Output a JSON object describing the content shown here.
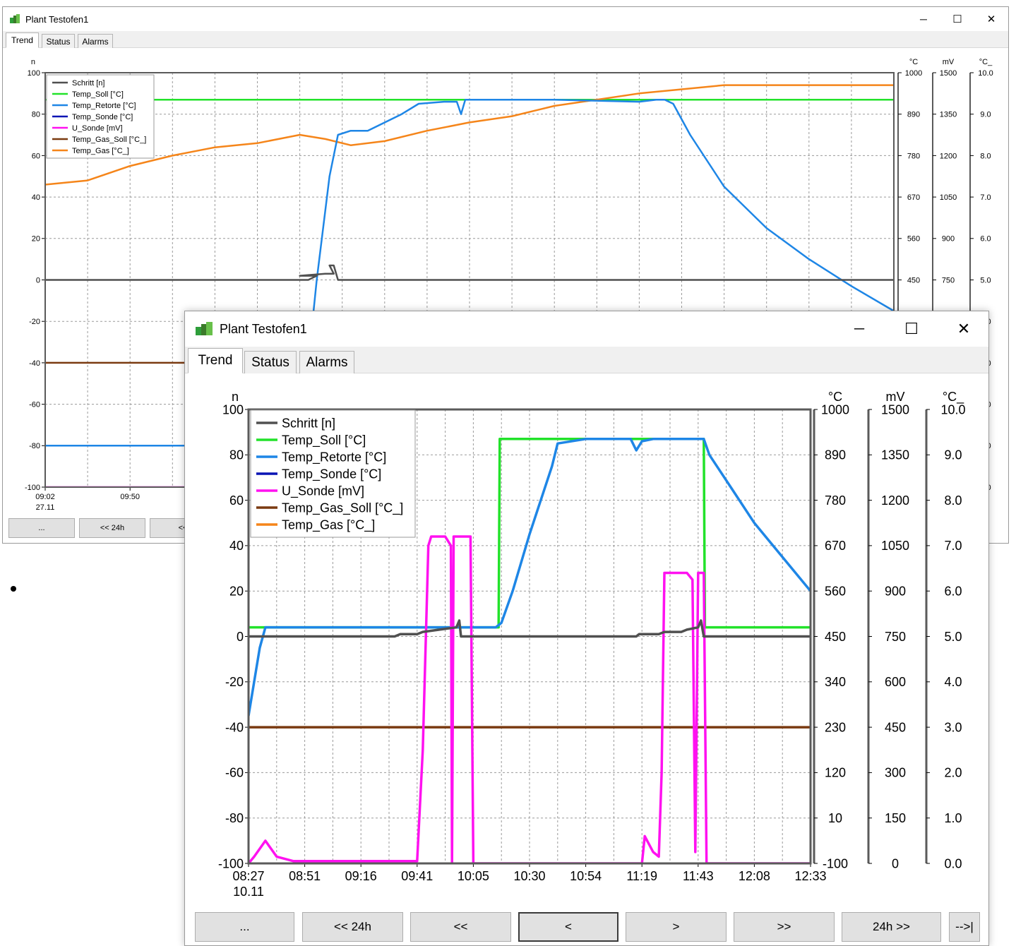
{
  "title": "Plant Testofen1",
  "window_controls": {
    "minimize": "─",
    "maximize": "☐",
    "close": "✕"
  },
  "tabs": [
    "Trend",
    "Status",
    "Alarms"
  ],
  "legend": [
    "Schritt [n]",
    "Temp_Soll [°C]",
    "Temp_Retorte [°C]",
    "Temp_Sonde [°C]",
    "U_Sonde [mV]",
    "Temp_Gas_Soll [°C_]",
    "Temp_Gas [°C_]"
  ],
  "colors": {
    "Schritt": "#505050",
    "Temp_Soll": "#22e22a",
    "Temp_Retorte": "#1e86e6",
    "Temp_Sonde": "#0a14b4",
    "U_Sonde": "#ff11f0",
    "Temp_Gas_Soll": "#7a3a10",
    "Temp_Gas": "#f5851a"
  },
  "axes": {
    "left": {
      "unit": "n",
      "ticks": [
        "100",
        "80",
        "60",
        "40",
        "20",
        "0",
        "-20",
        "-40",
        "-60",
        "-80",
        "-100"
      ]
    },
    "r1": {
      "unit": "°C",
      "ticks": [
        "1000",
        "890",
        "780",
        "670",
        "560",
        "450",
        "340",
        "230",
        "120",
        "10",
        "-100"
      ]
    },
    "r2": {
      "unit": "mV",
      "ticks": [
        "1500",
        "1350",
        "1200",
        "1050",
        "900",
        "750",
        "600",
        "450",
        "300",
        "150",
        "0"
      ]
    },
    "r3": {
      "unit": "°C_",
      "ticks": [
        "10.0",
        "9.0",
        "8.0",
        "7.0",
        "6.0",
        "5.0",
        "4.0",
        "3.0",
        "2.0",
        "1.0",
        "0.0"
      ]
    }
  },
  "back": {
    "x_ticks": [
      "09:02",
      "09:50"
    ],
    "date": "27.11",
    "buttons": [
      "...",
      "<< 24h",
      "<<"
    ]
  },
  "front": {
    "x_ticks": [
      "08:27",
      "08:51",
      "09:16",
      "09:41",
      "10:05",
      "10:30",
      "10:54",
      "11:19",
      "11:43",
      "12:08",
      "12:33"
    ],
    "date": "10.11",
    "buttons": [
      "...",
      "<< 24h",
      "<<",
      "<",
      ">",
      ">>",
      "24h >>",
      "-->|"
    ]
  },
  "chart_data": [
    {
      "type": "line",
      "title": "",
      "x_start": "09:02",
      "x_start_date": "27.11",
      "xlabel": "",
      "ylabel": "n",
      "ylim": [
        -100,
        100
      ],
      "grid": true,
      "legend_position": "top-left",
      "series": [
        {
          "name": "Schritt [n]",
          "axis": "n",
          "points": [
            [
              0,
              0
            ],
            [
              0.31,
              0
            ],
            [
              0.32,
              2
            ],
            [
              0.3,
              2
            ],
            [
              0.33,
              3
            ],
            [
              0.34,
              3
            ],
            [
              0.335,
              7
            ],
            [
              0.34,
              7
            ],
            [
              0.345,
              0
            ],
            [
              1,
              0
            ]
          ]
        },
        {
          "name": "Temp_Soll [°C]",
          "axis": "°C",
          "points": [
            [
              0,
              87
            ],
            [
              1,
              87
            ]
          ]
        },
        {
          "name": "Temp_Retorte [°C]",
          "axis": "°C",
          "points": [
            [
              0,
              -80
            ],
            [
              0.3,
              -80
            ],
            [
              0.305,
              -60
            ],
            [
              0.32,
              0
            ],
            [
              0.335,
              50
            ],
            [
              0.345,
              70
            ],
            [
              0.36,
              72
            ],
            [
              0.38,
              72
            ],
            [
              0.42,
              80
            ],
            [
              0.44,
              85
            ],
            [
              0.47,
              86
            ],
            [
              0.485,
              86
            ],
            [
              0.49,
              80
            ],
            [
              0.495,
              87
            ],
            [
              0.6,
              87
            ],
            [
              0.7,
              86
            ],
            [
              0.72,
              87
            ],
            [
              0.73,
              87
            ],
            [
              0.74,
              85
            ],
            [
              0.76,
              70
            ],
            [
              0.8,
              45
            ],
            [
              0.85,
              25
            ],
            [
              0.9,
              10
            ],
            [
              0.95,
              -3
            ],
            [
              1,
              -15
            ]
          ]
        },
        {
          "name": "Temp_Sonde [°C]",
          "axis": "°C",
          "points": []
        },
        {
          "name": "U_Sonde [mV]",
          "axis": "mV",
          "points": [
            [
              0,
              -100
            ],
            [
              1,
              -100
            ]
          ]
        },
        {
          "name": "Temp_Gas_Soll [°C_]",
          "axis": "°C_",
          "points": [
            [
              0,
              -40
            ],
            [
              1,
              -40
            ]
          ]
        },
        {
          "name": "Temp_Gas [°C_]",
          "axis": "°C_",
          "points": [
            [
              0,
              46
            ],
            [
              0.05,
              48
            ],
            [
              0.1,
              55
            ],
            [
              0.15,
              60
            ],
            [
              0.2,
              64
            ],
            [
              0.25,
              66
            ],
            [
              0.3,
              70
            ],
            [
              0.33,
              68
            ],
            [
              0.36,
              65
            ],
            [
              0.4,
              67
            ],
            [
              0.45,
              72
            ],
            [
              0.5,
              76
            ],
            [
              0.55,
              79
            ],
            [
              0.6,
              84
            ],
            [
              0.65,
              87
            ],
            [
              0.7,
              90
            ],
            [
              0.75,
              92
            ],
            [
              0.8,
              94
            ],
            [
              0.85,
              94
            ],
            [
              0.9,
              94
            ],
            [
              1,
              94
            ]
          ]
        }
      ]
    },
    {
      "type": "line",
      "title": "",
      "x_start": "08:27",
      "x_start_date": "10.11",
      "x_categories": [
        "08:27",
        "08:51",
        "09:16",
        "09:41",
        "10:05",
        "10:30",
        "10:54",
        "11:19",
        "11:43",
        "12:08",
        "12:33"
      ],
      "xlabel": "",
      "ylabel": "n",
      "ylim": [
        -100,
        100
      ],
      "grid": true,
      "legend_position": "top-left",
      "series": [
        {
          "name": "Schritt [n]",
          "axis": "n",
          "points": [
            [
              0,
              0
            ],
            [
              0.26,
              0
            ],
            [
              0.27,
              1
            ],
            [
              0.3,
              1
            ],
            [
              0.31,
              2
            ],
            [
              0.37,
              4
            ],
            [
              0.375,
              7
            ],
            [
              0.378,
              0
            ],
            [
              0.69,
              0
            ],
            [
              0.695,
              1
            ],
            [
              0.73,
              1
            ],
            [
              0.74,
              2
            ],
            [
              0.77,
              2
            ],
            [
              0.78,
              3
            ],
            [
              0.8,
              4
            ],
            [
              0.805,
              7
            ],
            [
              0.81,
              0
            ],
            [
              1,
              0
            ]
          ]
        },
        {
          "name": "Temp_Soll [°C]",
          "axis": "°C",
          "points": [
            [
              0,
              4
            ],
            [
              0.445,
              4
            ],
            [
              0.447,
              87
            ],
            [
              0.81,
              87
            ],
            [
              0.812,
              4
            ],
            [
              1,
              4
            ]
          ]
        },
        {
          "name": "Temp_Retorte [°C]",
          "axis": "°C",
          "points": [
            [
              0,
              -35
            ],
            [
              0.02,
              -5
            ],
            [
              0.03,
              4
            ],
            [
              0.05,
              4
            ],
            [
              0.44,
              4
            ],
            [
              0.45,
              6
            ],
            [
              0.47,
              20
            ],
            [
              0.5,
              45
            ],
            [
              0.54,
              75
            ],
            [
              0.55,
              85
            ],
            [
              0.6,
              87
            ],
            [
              0.68,
              87
            ],
            [
              0.69,
              82
            ],
            [
              0.7,
              86
            ],
            [
              0.72,
              87
            ],
            [
              0.81,
              87
            ],
            [
              0.82,
              80
            ],
            [
              0.86,
              65
            ],
            [
              0.9,
              50
            ],
            [
              0.95,
              35
            ],
            [
              1,
              20
            ]
          ]
        },
        {
          "name": "Temp_Sonde [°C]",
          "axis": "°C",
          "points": []
        },
        {
          "name": "U_Sonde [mV]",
          "axis": "mV",
          "points": [
            [
              0,
              -100
            ],
            [
              0.01,
              -97
            ],
            [
              0.03,
              -90
            ],
            [
              0.05,
              -97
            ],
            [
              0.08,
              -99
            ],
            [
              0.3,
              -99
            ],
            [
              0.31,
              -50
            ],
            [
              0.32,
              40
            ],
            [
              0.325,
              44
            ],
            [
              0.35,
              44
            ],
            [
              0.36,
              40
            ],
            [
              0.362,
              -100
            ],
            [
              0.365,
              44
            ],
            [
              0.375,
              44
            ],
            [
              0.395,
              44
            ],
            [
              0.4,
              -100
            ],
            [
              0.7,
              -100
            ],
            [
              0.705,
              -88
            ],
            [
              0.72,
              -95
            ],
            [
              0.73,
              -97
            ],
            [
              0.735,
              -60
            ],
            [
              0.74,
              28
            ],
            [
              0.78,
              28
            ],
            [
              0.79,
              25
            ],
            [
              0.795,
              -95
            ],
            [
              0.8,
              28
            ],
            [
              0.81,
              28
            ],
            [
              0.815,
              -100
            ],
            [
              1,
              -100
            ]
          ]
        },
        {
          "name": "Temp_Gas_Soll [°C_]",
          "axis": "°C_",
          "points": [
            [
              0,
              -40
            ],
            [
              1,
              -40
            ]
          ]
        },
        {
          "name": "Temp_Gas [°C_]",
          "axis": "°C_",
          "points": []
        }
      ]
    }
  ]
}
